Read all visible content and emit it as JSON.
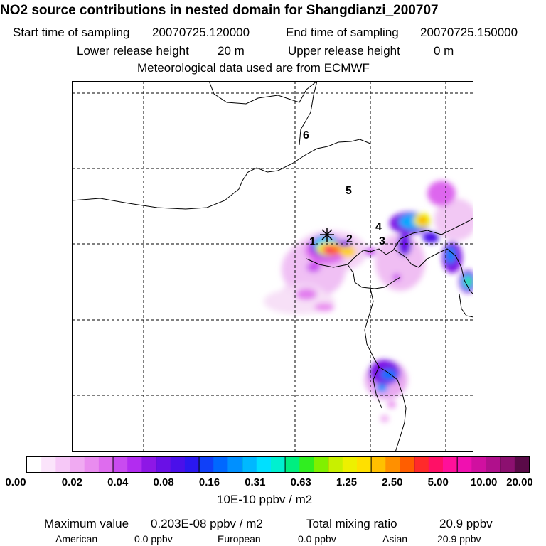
{
  "header": {
    "title": "NO2 source contributions in nested domain for Shangdianzi_200707",
    "start_label": "Start time of sampling",
    "start_value": "20070725.120000",
    "end_label": "End time of sampling",
    "end_value": "20070725.150000",
    "lower_label": "Lower release height",
    "lower_value": "20 m",
    "upper_label": "Upper release height",
    "upper_value": "0 m",
    "met_line": "Meteorological data used are from ECMWF"
  },
  "map": {
    "region_labels": [
      "1",
      "2",
      "3",
      "4",
      "5",
      "6"
    ]
  },
  "colorbar": {
    "colors": [
      "#ffffff",
      "#fbe4fb",
      "#f6c8f7",
      "#f0aaf2",
      "#e98cef",
      "#de6cee",
      "#c94bf0",
      "#b22cf0",
      "#8e17e6",
      "#6a10e6",
      "#4a10ea",
      "#2a18f0",
      "#1040f8",
      "#0068ff",
      "#0090ff",
      "#00b8ff",
      "#00e0ff",
      "#00f0d0",
      "#00ee80",
      "#30ee20",
      "#80f000",
      "#c8f000",
      "#eef000",
      "#ffe000",
      "#ffc000",
      "#ff9000",
      "#ff5e00",
      "#ff2a2a",
      "#ff1066",
      "#ff109a",
      "#f010b0",
      "#d010a0",
      "#b0108c",
      "#8c1070",
      "#5a0a48"
    ],
    "tick_labels": [
      "0.00",
      "0.02",
      "0.04",
      "0.08",
      "0.16",
      "0.31",
      "0.63",
      "1.25",
      "2.50",
      "5.00",
      "10.00",
      "20.00"
    ],
    "unit_label": "10E-10 ppbv / m2"
  },
  "footer": {
    "max_label": "Maximum value",
    "max_value": "0.203E-08 ppbv / m2",
    "total_label": "Total mixing ratio",
    "total_value": "20.9 ppbv",
    "american_label": "American",
    "american_value": "0.0 ppbv",
    "european_label": "European",
    "european_value": "0.0 ppbv",
    "asian_label": "Asian",
    "asian_value": "20.9 ppbv"
  }
}
